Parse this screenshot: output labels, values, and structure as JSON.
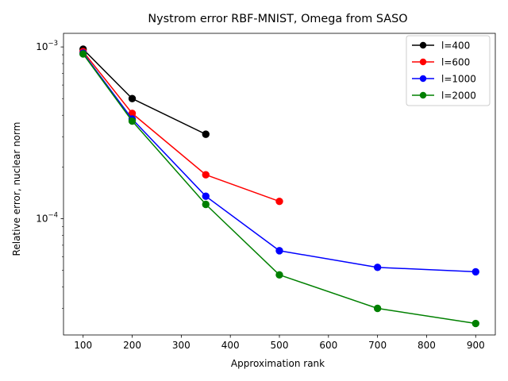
{
  "chart_data": {
    "type": "line",
    "title": "Nystrom error RBF-MNIST, Omega from SASO",
    "xlabel": "Approximation rank",
    "ylabel": "Relative error, nuclear norm",
    "xlim": [
      60,
      940
    ],
    "ylim": [
      2.1e-05,
      0.0012
    ],
    "yscale": "log",
    "grid": false,
    "legend_position": "upper right",
    "x_ticks": [
      100,
      200,
      300,
      400,
      500,
      600,
      700,
      800,
      900
    ],
    "x_tick_labels": [
      "100",
      "200",
      "300",
      "400",
      "500",
      "600",
      "700",
      "800",
      "900"
    ],
    "y_ticks": [
      {
        "value": 0.001,
        "base": "10",
        "exp": "−3"
      },
      {
        "value": 0.0001,
        "base": "10",
        "exp": "−4"
      }
    ],
    "series": [
      {
        "name": "l=400",
        "color": "#000000",
        "marker": "circle",
        "x": [
          100,
          200,
          350
        ],
        "y": [
          0.00097,
          0.0005,
          0.00031
        ]
      },
      {
        "name": "l=600",
        "color": "#ff0000",
        "marker": "circle",
        "x": [
          100,
          200,
          350,
          500
        ],
        "y": [
          0.00094,
          0.00041,
          0.00018,
          0.000126
        ]
      },
      {
        "name": "l=1000",
        "color": "#0000ff",
        "marker": "circle",
        "x": [
          100,
          200,
          350,
          500,
          700,
          900
        ],
        "y": [
          0.00092,
          0.00038,
          0.000135,
          6.5e-05,
          5.2e-05,
          4.9e-05
        ]
      },
      {
        "name": "l=2000",
        "color": "#008000",
        "marker": "circle",
        "x": [
          100,
          200,
          350,
          500,
          700,
          900
        ],
        "y": [
          0.00091,
          0.00037,
          0.000121,
          4.7e-05,
          3e-05,
          2.45e-05
        ]
      }
    ]
  }
}
